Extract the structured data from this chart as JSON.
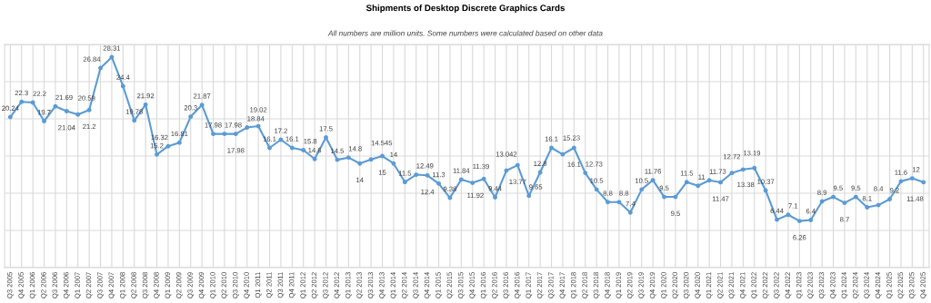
{
  "chart_data": {
    "type": "line",
    "title": "Shipments of Desktop Discrete Graphics Cards",
    "annotations": [
      "All numbers are million units. Some numbers were calculated based on other data"
    ],
    "categories": [
      "Q3 2005",
      "Q4 2005",
      "Q1 2006",
      "Q2 2006",
      "Q3 2006",
      "Q4 2006",
      "Q1 2007",
      "Q2 2007",
      "Q3 2007",
      "Q4 2007",
      "Q1 2008",
      "Q2 2008",
      "Q3 2008",
      "Q4 2008",
      "Q1 2009",
      "Q2 2009",
      "Q3 2009",
      "Q4 2009",
      "Q1 2010",
      "Q2 2010",
      "Q3 2010",
      "Q4 2010",
      "Q1 2011",
      "Q2 2011",
      "Q3 2011",
      "Q4 2011",
      "Q1 2012",
      "Q2 2012",
      "Q3 2012",
      "Q4 2012",
      "Q1 2013",
      "Q2 2013",
      "Q3 2013",
      "Q4 2013",
      "Q1 2014",
      "Q2 2014",
      "Q3 2014",
      "Q4 2014",
      "Q1 2015",
      "Q2 2015",
      "Q3 2015",
      "Q4 2015",
      "Q1 2016",
      "Q2 2016",
      "Q3 2016",
      "Q4 2016",
      "Q1 2017",
      "Q2 2017",
      "Q3 2017",
      "Q4 2017",
      "Q1 2018",
      "Q2 2018",
      "Q3 2018",
      "Q4 2018",
      "Q1 2019",
      "Q2 2019",
      "Q3 2019",
      "Q4 2019",
      "Q1 2020",
      "Q2 2020",
      "Q3 2020",
      "Q4 2020",
      "Q1 2021",
      "Q2 2021",
      "Q3 2021",
      "Q4 2021",
      "Q1 2022",
      "Q2 2022",
      "Q3 2022",
      "Q4 2022",
      "Q1 2023",
      "Q2 2023",
      "Q3 2023",
      "Q4 2023",
      "Q1 2024",
      "Q2 2024",
      "Q3 2024",
      "Q4 2024",
      "Q1 2025",
      "Q2 2025",
      "Q3 2025",
      "Q4 2025"
    ],
    "series": [
      {
        "color": "#5b9bd5",
        "values": [
          20.24,
          22.3,
          22.2,
          19.7,
          21.69,
          21.04,
          20.59,
          21.2,
          26.84,
          28.31,
          24.4,
          19.78,
          21.92,
          15.2,
          16.32,
          16.81,
          20.3,
          21.87,
          17.98,
          17.98,
          17.98,
          18.84,
          19.02,
          16.1,
          17.2,
          16.1,
          15.8,
          14.6,
          17.5,
          14.5,
          14.8,
          14,
          14.545,
          15,
          14,
          11.5,
          12.49,
          12.4,
          11.3,
          9.38,
          11.84,
          11.39,
          11.92,
          9.44,
          13.042,
          13.77,
          9.65,
          12.8,
          16.1,
          15.23,
          16.1,
          12.73,
          10.5,
          8.8,
          8.8,
          7.4,
          10.5,
          11.76,
          9.5,
          9.5,
          11.5,
          11,
          11.73,
          11.47,
          12.72,
          13.19,
          13.38,
          10.37,
          6.44,
          7.1,
          6.26,
          6.4,
          8.9,
          9.5,
          8.7,
          9.5,
          8.1,
          8.4,
          9.2,
          11.6,
          12,
          11.48
        ]
      }
    ],
    "ylim": [
      0,
      30
    ],
    "yticks": [
      {
        "value": 0,
        "label": null
      },
      {
        "value": 5,
        "label": null
      },
      {
        "value": 10,
        "label": null
      },
      {
        "value": 15,
        "label": null
      },
      {
        "value": 20,
        "label": null
      },
      {
        "value": 25,
        "label": null
      },
      {
        "value": 30,
        "label": null
      }
    ],
    "tick_labels": "x",
    "grid": true,
    "data_labels": true,
    "marker": "circle",
    "line_style": "solid"
  }
}
